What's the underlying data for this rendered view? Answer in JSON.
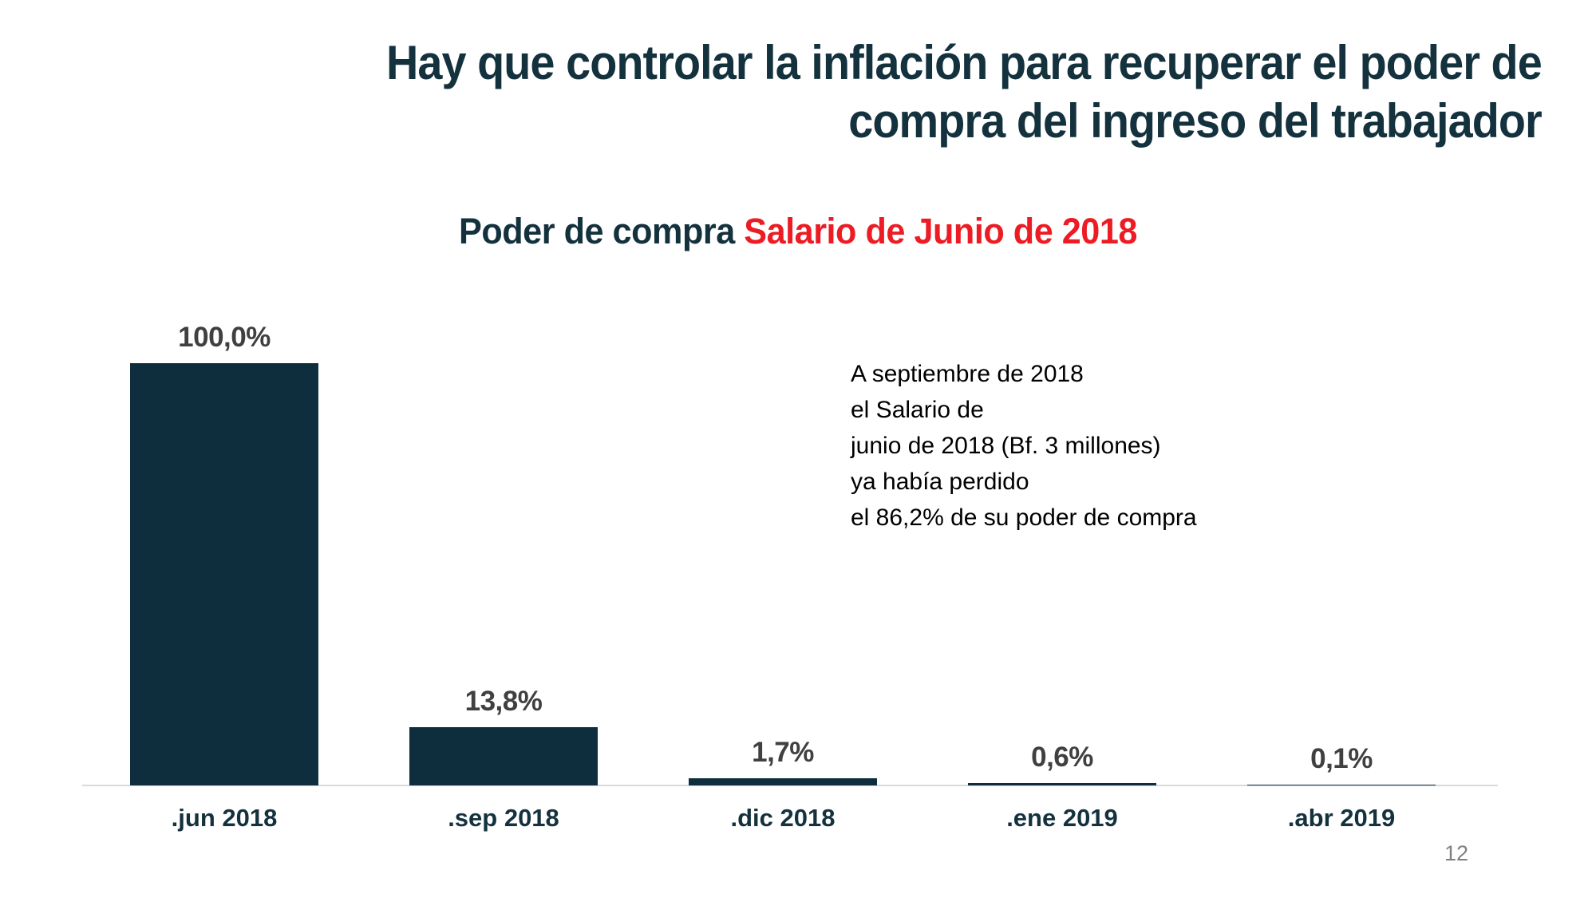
{
  "slide": {
    "title": "Hay que controlar la inflación para recuperar el poder de\ncompra del ingreso del trabajador",
    "page_number": "12"
  },
  "chart_title": {
    "part1": "Poder de compra ",
    "part2": "Salario de Junio de 2018"
  },
  "annotation": {
    "text": "A septiembre de 2018\nel Salario de\njunio de 2018 (Bf. 3 millones)\n ya había perdido\nel 86,2% de su poder de compra"
  },
  "chart_data": {
    "type": "bar",
    "title": "Poder de compra Salario de Junio de 2018",
    "categories": [
      ".jun 2018",
      ".sep 2018",
      ".dic 2018",
      ".ene 2019",
      ".abr 2019"
    ],
    "values": [
      100.0,
      13.8,
      1.7,
      0.6,
      0.1
    ],
    "value_labels": [
      "100,0%",
      "13,8%",
      "1,7%",
      "0,6%",
      "0,1%"
    ],
    "ylabel": "",
    "xlabel": "",
    "ylim": [
      0,
      100
    ],
    "grid": false,
    "legend": false,
    "bar_color": "#0e2d3d",
    "value_label_color": "#404040",
    "category_label_color": "#14313e",
    "axis_line_color": "#d9d9d9"
  },
  "colors": {
    "title_navy": "#14313e",
    "accent_red": "#ed1c24",
    "annotation_black": "#000000",
    "page_number_gray": "#808080",
    "background": "#ffffff"
  }
}
